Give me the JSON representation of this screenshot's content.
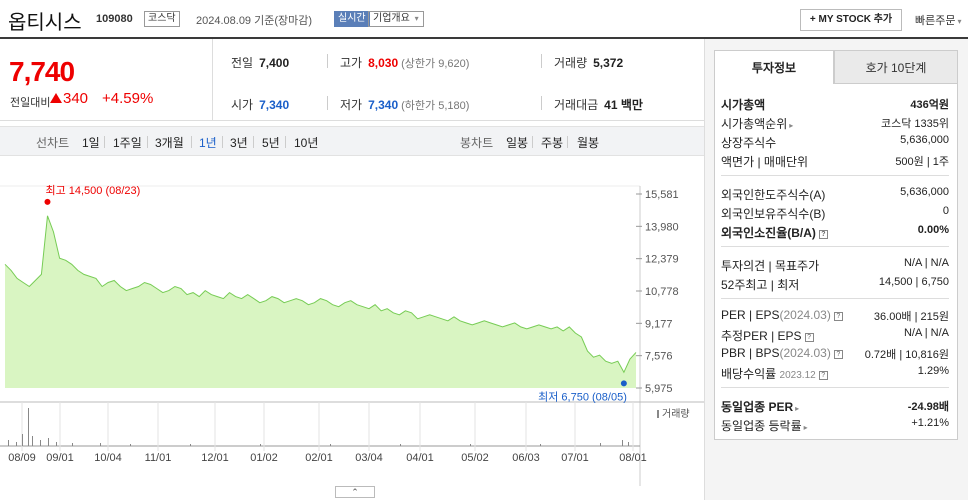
{
  "header": {
    "stock_name": "옵티시스",
    "stock_code": "109080",
    "market_badge": "코스닥",
    "date": "2024.08.09",
    "date_suffix": "기준(장마감)",
    "realtime": "실시간",
    "company_info": "기업개요",
    "my_stock_button": "+ MY STOCK 추가",
    "quick_order": "빠른주문"
  },
  "price": {
    "current": "7,740",
    "change_label": "전일대비",
    "change": "340",
    "change_pct": "+4.59%"
  },
  "quote": {
    "prev_close_label": "전일",
    "prev_close": "7,400",
    "high_label": "고가",
    "high": "8,030",
    "upper_limit": "(상한가 9,620)",
    "volume_label": "거래량",
    "volume": "5,372",
    "open_label": "시가",
    "open": "7,340",
    "low_label": "저가",
    "low": "7,340",
    "lower_limit": "(하한가 5,180)",
    "amount_label": "거래대금",
    "amount": "41",
    "amount_unit": "백만"
  },
  "periods": {
    "line_label": "선차트",
    "items": [
      "1일",
      "1주일",
      "3개월",
      "1년",
      "3년",
      "5년",
      "10년"
    ],
    "active": "1년",
    "candle_label": "봉차트",
    "candles": [
      "일봉",
      "주봉",
      "월봉"
    ]
  },
  "chart_data": {
    "type": "area",
    "y_ticks": [
      "15,581",
      "13,980",
      "12,379",
      "10,778",
      "9,177",
      "7,576",
      "5,975"
    ],
    "ylim": [
      5975,
      15581
    ],
    "x_ticks": [
      "08/09",
      "09/01",
      "10/04",
      "11/01",
      "12/01",
      "01/02",
      "02/01",
      "03/04",
      "04/01",
      "05/02",
      "06/03",
      "07/01",
      "08/01"
    ],
    "high_annotation": "최고 14,500 (08/23)",
    "low_annotation": "최저 6,750 (08/05)",
    "volume_legend": "거래량",
    "fill_color": "#d9f5c2",
    "line_color": "#77cc55",
    "values": [
      12100,
      11800,
      11400,
      11200,
      11000,
      11300,
      11600,
      14500,
      13700,
      12400,
      12300,
      12100,
      11800,
      11600,
      11500,
      11400,
      11000,
      11200,
      11300,
      11000,
      10800,
      10900,
      11000,
      11200,
      11100,
      10900,
      10700,
      10800,
      11000,
      10900,
      10600,
      10700,
      10500,
      10800,
      10600,
      10500,
      10400,
      10700,
      10500,
      10400,
      10600,
      10400,
      10200,
      10300,
      10500,
      10400,
      10200,
      10300,
      10400,
      10300,
      10100,
      10200,
      10400,
      10300,
      10100,
      10000,
      10200,
      10300,
      10100,
      10000,
      9900,
      10100,
      9800,
      9900,
      9700,
      9600,
      9800,
      9700,
      9400,
      9500,
      9600,
      9500,
      9400,
      9300,
      9500,
      9300,
      9200,
      9100,
      9200,
      9300,
      9200,
      9100,
      9000,
      9100,
      9200,
      9000,
      8900,
      9000,
      9100,
      9000,
      8900,
      9000,
      8800,
      9000,
      8700,
      8500,
      7800,
      7500,
      7600,
      7300,
      7200,
      7300,
      6750,
      7400,
      7740
    ]
  },
  "side": {
    "tab_active": "투자정보",
    "tab_other": "호가 10단계",
    "market_cap_label": "시가총액",
    "market_cap": "436억원",
    "rank_label": "시가총액순위",
    "rank": "코스닥 1335위",
    "shares_label": "상장주식수",
    "shares": "5,636,000",
    "par_label": "액면가 | 매매단위",
    "par": "500원 | 1주",
    "foreign_limit_label": "외국인한도주식수(A)",
    "foreign_limit": "5,636,000",
    "foreign_hold_label": "외국인보유주식수(B)",
    "foreign_hold": "0",
    "foreign_ratio_label": "외국인소진율(B/A)",
    "foreign_ratio": "0.00%",
    "opinion_label": "투자의견 | 목표주가",
    "opinion": "N/A | N/A",
    "week52_label": "52주최고 | 최저",
    "week52": "14,500 | 6,750",
    "per_label": "PER | EPS",
    "per_period": "(2024.03)",
    "per": "36.00배 | 215원",
    "est_per_label": "추정PER | EPS",
    "est_per": "N/A | N/A",
    "pbr_label": "PBR | BPS",
    "pbr_period": "(2024.03)",
    "pbr": "0.72배 | 10,816원",
    "div_label": "배당수익률",
    "div_period": "2023.12",
    "div": "1.29%",
    "ind_per_label": "동일업종 PER",
    "ind_per": "-24.98배",
    "ind_rate_label": "동일업종 등락률",
    "ind_rate": "+1.21%"
  }
}
